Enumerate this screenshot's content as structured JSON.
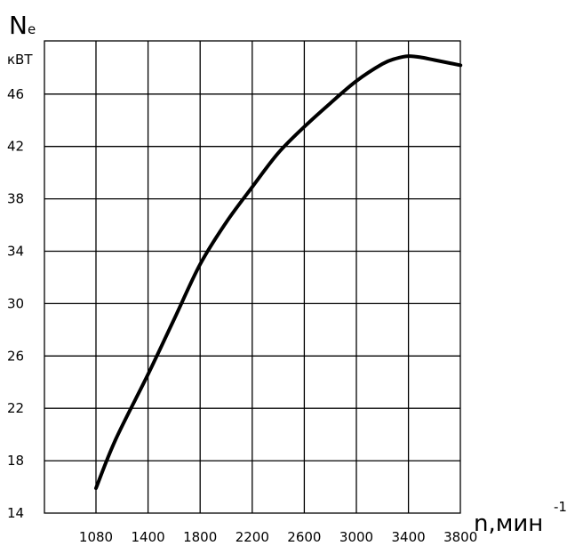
{
  "chart_data": {
    "type": "line",
    "y_axis_title_main": "N",
    "y_axis_title_sub": "e",
    "y_unit": "кВТ",
    "x_axis_title": "n,мин",
    "x_axis_title_superscript": "-1",
    "x_ticks": [
      1080,
      1400,
      1800,
      2200,
      2600,
      3000,
      3400,
      3800
    ],
    "y_ticks": [
      14,
      18,
      22,
      26,
      30,
      34,
      38,
      42,
      46
    ],
    "xlim": [
      1080,
      3800
    ],
    "ylim": [
      14,
      50
    ],
    "grid": true,
    "series": [
      {
        "x": [
          1080,
          1200,
          1400,
          1600,
          1800,
          2000,
          2200,
          2400,
          2600,
          2800,
          3000,
          3200,
          3300,
          3400,
          3500,
          3600,
          3800
        ],
        "values": [
          15.9,
          19.6,
          24.6,
          28.8,
          33.0,
          36.2,
          38.9,
          41.5,
          43.5,
          45.3,
          47.0,
          48.3,
          48.7,
          48.9,
          48.8,
          48.6,
          48.2
        ]
      }
    ]
  }
}
